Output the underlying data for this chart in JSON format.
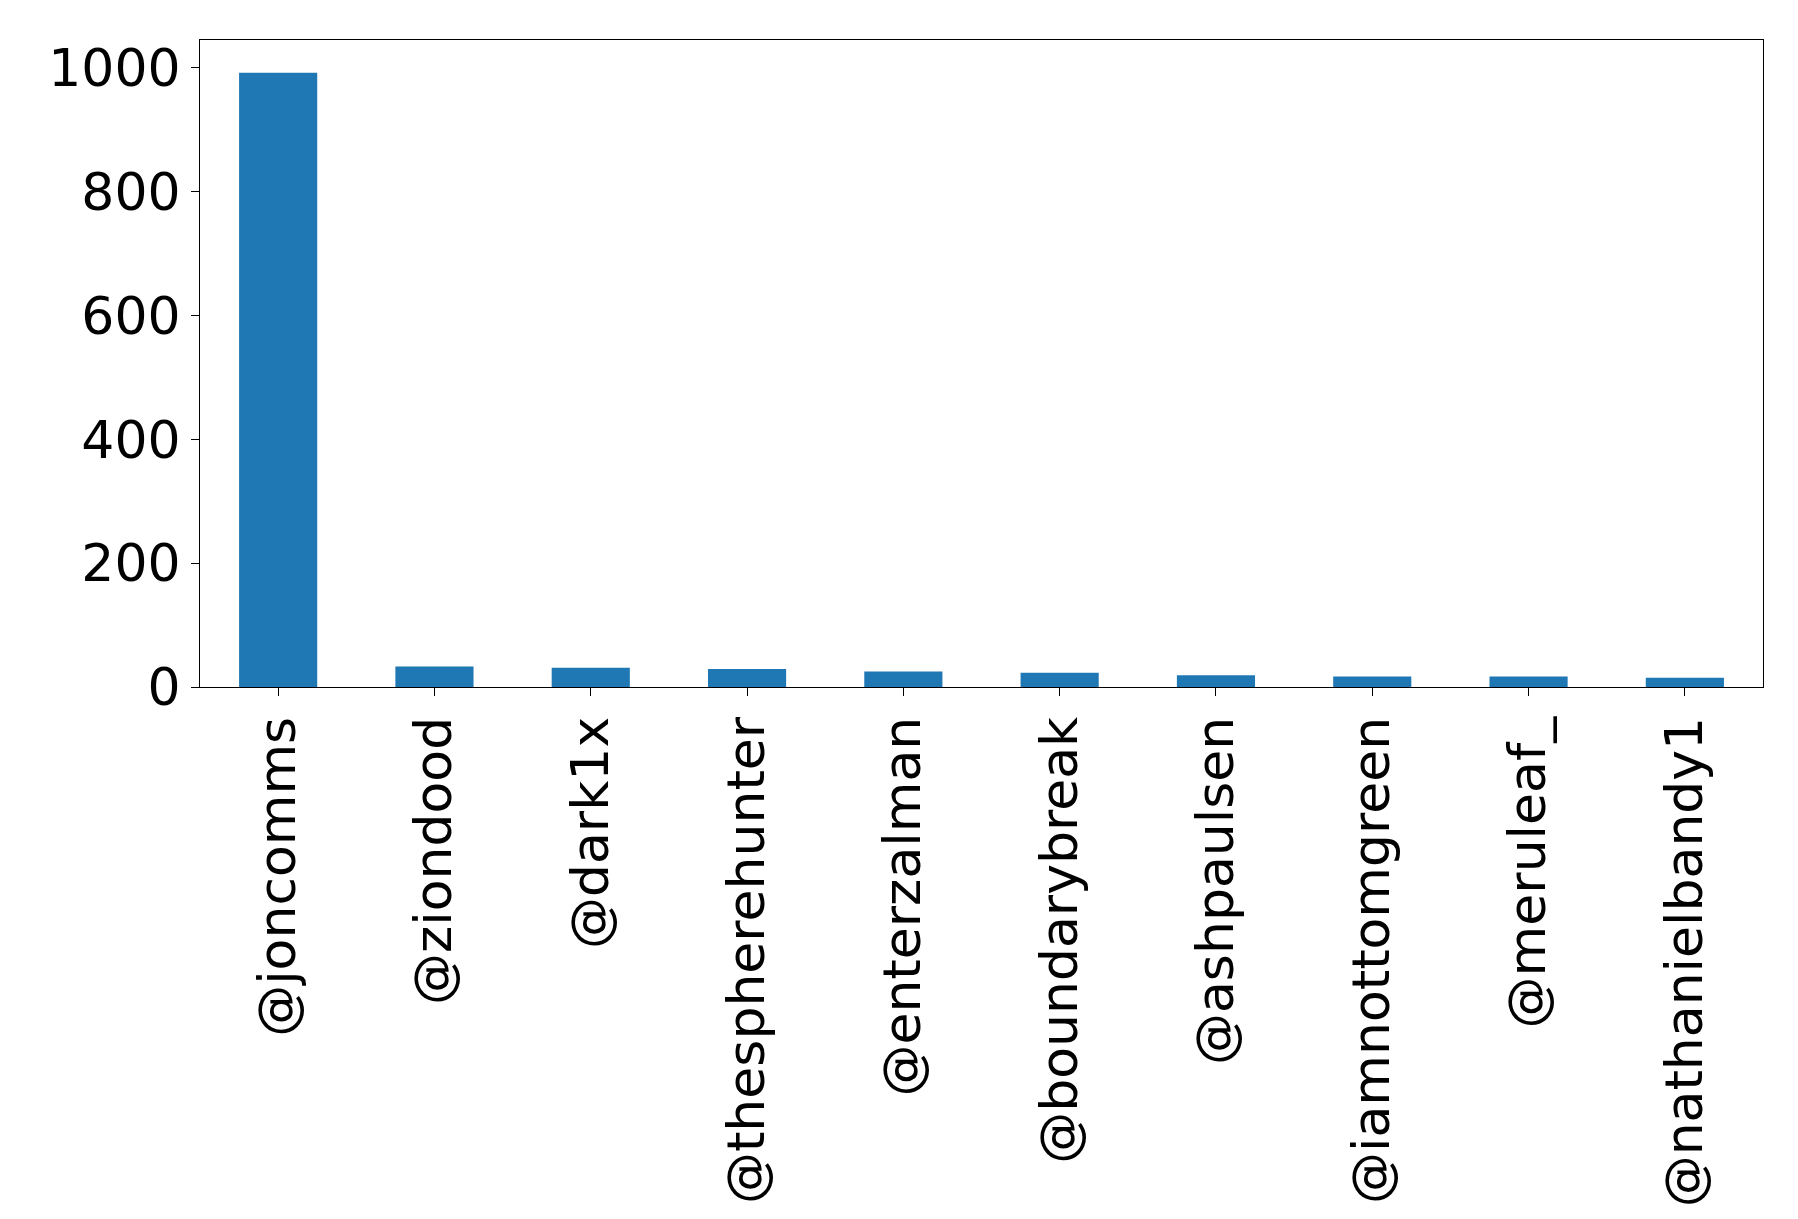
{
  "chart_data": {
    "type": "bar",
    "categories": [
      "@joncomms",
      "@ziondood",
      "@dark1x",
      "@thespherehunter",
      "@enterzalman",
      "@boundarybreak",
      "@ashpaulsen",
      "@iamnottomgreen",
      "@meruleaf_",
      "@nathanielbandy1"
    ],
    "values": [
      992,
      33,
      31,
      29,
      25,
      23,
      19,
      17,
      17,
      15
    ],
    "color": "#1f77b4",
    "ylim": [
      0,
      1045
    ],
    "yticks": [
      0,
      200,
      400,
      600,
      800,
      1000
    ]
  }
}
